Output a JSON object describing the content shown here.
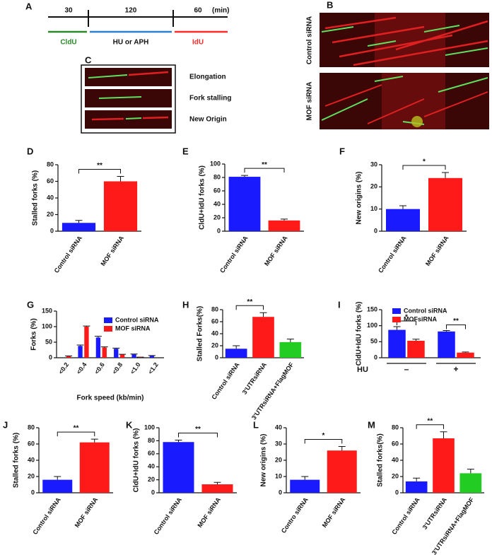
{
  "panel_A": {
    "label": "A",
    "durations": [
      "30",
      "120",
      "60"
    ],
    "unit": "(min)",
    "phases": [
      "CldU",
      "HU or APH",
      "IdU"
    ]
  },
  "panel_B": {
    "label": "B",
    "rows": [
      "Control siRNA",
      "MOF siRNA"
    ]
  },
  "panel_C": {
    "label": "C",
    "rows": [
      "Elongation",
      "Fork stalling",
      "New Origin"
    ]
  },
  "chart_data": [
    {
      "label": "D",
      "type": "bar",
      "categories": [
        "Control siRNA",
        "MOF siRNA"
      ],
      "values": [
        10,
        60
      ],
      "errors": [
        3,
        6
      ],
      "colors": [
        "#1a1aff",
        "#ff1a1a"
      ],
      "ylabel": "Stalled forks (%)",
      "ylim": [
        0,
        80
      ],
      "yticks": [
        0,
        20,
        40,
        60,
        80
      ],
      "annotations": [
        "**"
      ]
    },
    {
      "label": "E",
      "type": "bar",
      "categories": [
        "Control siRNA",
        "MOF siRNA"
      ],
      "values": [
        81,
        16
      ],
      "errors": [
        2,
        2
      ],
      "colors": [
        "#1a1aff",
        "#ff1a1a"
      ],
      "ylabel": "CldU+IdU forks (%)",
      "ylim": [
        0,
        100
      ],
      "yticks": [
        0,
        20,
        40,
        60,
        80,
        100
      ],
      "annotations": [
        "**"
      ]
    },
    {
      "label": "F",
      "type": "bar",
      "categories": [
        "Control siRNA",
        "MOF siRNA"
      ],
      "values": [
        10,
        24
      ],
      "errors": [
        1.5,
        2.5
      ],
      "colors": [
        "#1a1aff",
        "#ff1a1a"
      ],
      "ylabel": "New origins (%)",
      "ylim": [
        0,
        30
      ],
      "yticks": [
        0,
        10,
        20,
        30
      ],
      "annotations": [
        "*"
      ]
    },
    {
      "label": "G",
      "type": "grouped_bar",
      "categories": [
        "<0.2",
        "<0.4",
        "<0.6",
        "<0.8",
        "<1.0",
        "<1.2"
      ],
      "series": [
        {
          "name": "Control siRNA",
          "color": "#1a1aff",
          "values": [
            0,
            38,
            65,
            29,
            11,
            6
          ],
          "errors": [
            0,
            3,
            4,
            2,
            1,
            1
          ]
        },
        {
          "name": "MOF siRNA",
          "color": "#ff1a1a",
          "values": [
            5,
            100,
            33,
            10,
            2,
            0
          ],
          "errors": [
            1,
            2,
            2,
            1,
            0,
            0
          ]
        }
      ],
      "ylabel": "Forks (%)",
      "xlabel": "Fork speed (kb/min)",
      "ylim": [
        0,
        150
      ],
      "yticks": [
        0,
        50,
        100,
        150
      ]
    },
    {
      "label": "H",
      "type": "bar",
      "categories": [
        "Control siRNA",
        "3'UTRsiRNA",
        "3'UTRsiRNA+FlagMOF"
      ],
      "values": [
        15,
        68,
        26
      ],
      "errors": [
        5,
        7,
        5
      ],
      "colors": [
        "#1a1aff",
        "#ff1a1a",
        "#22cc22"
      ],
      "ylabel": "Stalled Forks(%)",
      "ylim": [
        0,
        80
      ],
      "yticks": [
        0,
        20,
        40,
        60,
        80
      ],
      "annotations": [
        "**"
      ]
    },
    {
      "label": "I",
      "type": "grouped_bar",
      "categories": [
        "–",
        "+"
      ],
      "series": [
        {
          "name": "Control siRNA",
          "color": "#1a1aff",
          "values": [
            87,
            82
          ],
          "errors": [
            10,
            3
          ]
        },
        {
          "name": "MOFsiRNA",
          "color": "#ff1a1a",
          "values": [
            53,
            16
          ],
          "errors": [
            5,
            2
          ]
        }
      ],
      "ylabel": "CldU+IdU forks (%)",
      "xlabel": "HU",
      "ylim": [
        0,
        150
      ],
      "yticks": [
        0,
        50,
        100,
        150
      ],
      "annotations": [
        "*",
        "**"
      ]
    },
    {
      "label": "J",
      "type": "bar",
      "categories": [
        "Control siRNA",
        "MOF siRNA"
      ],
      "values": [
        16,
        62
      ],
      "errors": [
        4,
        4
      ],
      "colors": [
        "#1a1aff",
        "#ff1a1a"
      ],
      "ylabel": "Stalled forks (%)",
      "ylim": [
        0,
        80
      ],
      "yticks": [
        0,
        20,
        40,
        60,
        80
      ],
      "annotations": [
        "**"
      ]
    },
    {
      "label": "K",
      "type": "bar",
      "categories": [
        "Control siRNA",
        "MOF siRNA"
      ],
      "values": [
        78,
        13
      ],
      "errors": [
        3,
        3
      ],
      "colors": [
        "#1a1aff",
        "#ff1a1a"
      ],
      "ylabel": "CldU+IdU forks (%)",
      "ylim": [
        0,
        100
      ],
      "yticks": [
        0,
        20,
        40,
        60,
        80,
        100
      ],
      "annotations": [
        "**"
      ]
    },
    {
      "label": "L",
      "type": "bar",
      "categories": [
        "Contro siRNA",
        "MOF siRNA"
      ],
      "values": [
        8,
        26
      ],
      "errors": [
        2,
        2.5
      ],
      "colors": [
        "#1a1aff",
        "#ff1a1a"
      ],
      "ylabel": "New origins (%)",
      "ylim": [
        0,
        40
      ],
      "yticks": [
        0,
        10,
        20,
        30,
        40
      ],
      "annotations": [
        "*"
      ]
    },
    {
      "label": "M",
      "type": "bar",
      "categories": [
        "Control siRNA",
        "3'UTRsiRNA",
        "3'UTRsiRNA+FlagMOF"
      ],
      "values": [
        14,
        67,
        24
      ],
      "errors": [
        4,
        8,
        5
      ],
      "colors": [
        "#1a1aff",
        "#ff1a1a",
        "#22cc22"
      ],
      "ylabel": "Stalled forks(%)",
      "ylim": [
        0,
        80
      ],
      "yticks": [
        0,
        20,
        40,
        60,
        80
      ],
      "annotations": [
        "**"
      ]
    }
  ]
}
